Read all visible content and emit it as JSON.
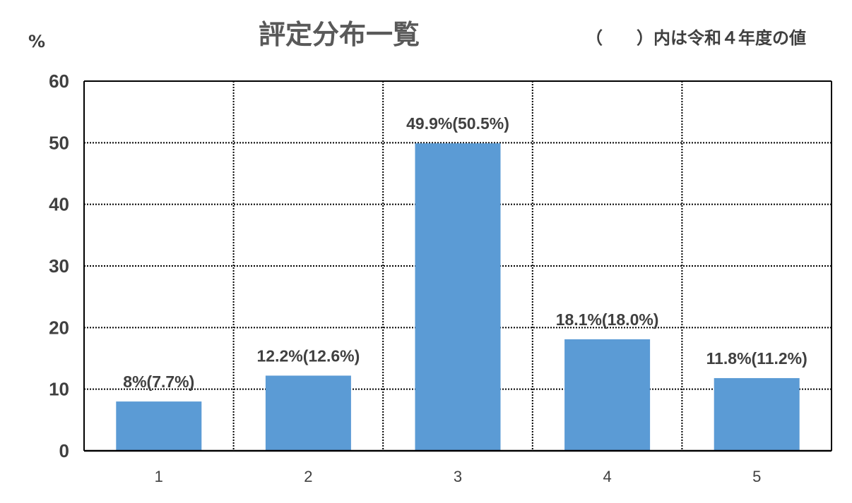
{
  "chart_data": {
    "type": "bar",
    "title": "評定分布一覧",
    "note": "（　　）内は令和４年度の値",
    "xlabel": "",
    "ylabel": "%",
    "categories": [
      "1",
      "2",
      "3",
      "4",
      "5"
    ],
    "series": [
      {
        "values": [
          8.0,
          12.2,
          49.9,
          18.1,
          11.8
        ],
        "previous_values": [
          7.7,
          12.6,
          50.5,
          18.0,
          11.2
        ],
        "color": "#5B9BD5"
      }
    ],
    "data_labels": [
      "8%(7.7%)",
      "12.2%(12.6%)",
      "49.9%(50.5%)",
      "18.1%(18.0%)",
      "11.8%(11.2%)"
    ],
    "ylim": [
      0,
      60
    ],
    "yticks": [
      0,
      10,
      20,
      30,
      40,
      50,
      60
    ],
    "grid": "dotted",
    "legend": "none"
  }
}
